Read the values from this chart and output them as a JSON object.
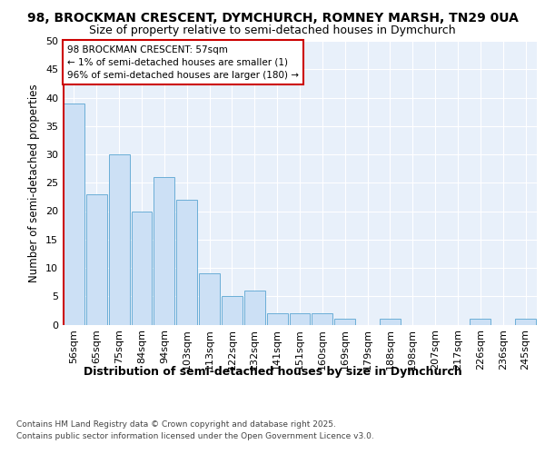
{
  "title": "98, BROCKMAN CRESCENT, DYMCHURCH, ROMNEY MARSH, TN29 0UA",
  "subtitle": "Size of property relative to semi-detached houses in Dymchurch",
  "xlabel": "Distribution of semi-detached houses by size in Dymchurch",
  "ylabel": "Number of semi-detached properties",
  "categories": [
    "56sqm",
    "65sqm",
    "75sqm",
    "84sqm",
    "94sqm",
    "103sqm",
    "113sqm",
    "122sqm",
    "132sqm",
    "141sqm",
    "151sqm",
    "160sqm",
    "169sqm",
    "179sqm",
    "188sqm",
    "198sqm",
    "207sqm",
    "217sqm",
    "226sqm",
    "236sqm",
    "245sqm"
  ],
  "values": [
    39,
    23,
    30,
    20,
    26,
    22,
    9,
    5,
    6,
    2,
    2,
    2,
    1,
    0,
    1,
    0,
    0,
    0,
    1,
    0,
    1
  ],
  "bar_color": "#cce0f5",
  "bar_edge_color": "#6baed6",
  "highlight_edge_color": "#cc0000",
  "annotation_text": "98 BROCKMAN CRESCENT: 57sqm\n← 1% of semi-detached houses are smaller (1)\n96% of semi-detached houses are larger (180) →",
  "annotation_box_color": "#ffffff",
  "annotation_box_edge_color": "#cc0000",
  "vline_color": "#cc0000",
  "ylim": [
    0,
    50
  ],
  "yticks": [
    0,
    5,
    10,
    15,
    20,
    25,
    30,
    35,
    40,
    45,
    50
  ],
  "background_color": "#e8f0fa",
  "grid_color": "#ffffff",
  "footer_line1": "Contains HM Land Registry data © Crown copyright and database right 2025.",
  "footer_line2": "Contains public sector information licensed under the Open Government Licence v3.0.",
  "title_fontsize": 10,
  "subtitle_fontsize": 9,
  "xlabel_fontsize": 9,
  "ylabel_fontsize": 8.5,
  "tick_fontsize": 8,
  "annotation_fontsize": 7.5,
  "footer_fontsize": 6.5
}
